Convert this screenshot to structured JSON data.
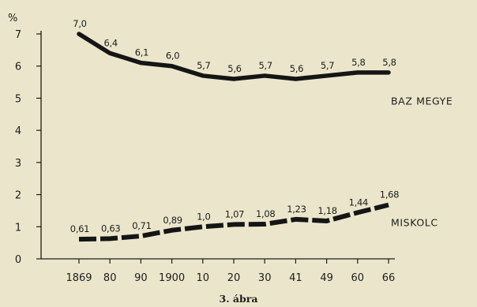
{
  "chart_data": {
    "type": "line",
    "unit_label": "%",
    "caption": "3. ábra",
    "x_tick_labels": [
      "1869",
      "80",
      "90",
      "1900",
      "10",
      "20",
      "30",
      "41",
      "49",
      "60",
      "66"
    ],
    "x_years": [
      1869,
      1880,
      1890,
      1900,
      1910,
      1920,
      1930,
      1941,
      1949,
      1960,
      1966
    ],
    "y_ticks": [
      0,
      1,
      2,
      3,
      4,
      5,
      6,
      7
    ],
    "y_tick_labels": [
      "0",
      "1",
      "2",
      "3",
      "4",
      "5",
      "6",
      "7"
    ],
    "ylim": [
      0,
      7
    ],
    "grid": false,
    "series": [
      {
        "name": "BAZ MEGYE",
        "style": "solid",
        "values": [
          7.0,
          6.4,
          6.1,
          6.0,
          5.7,
          5.6,
          5.7,
          5.6,
          5.7,
          5.8,
          5.8
        ],
        "value_labels": [
          "7,0",
          "6,4",
          "6,1",
          "6,0",
          "5,7",
          "5,6",
          "5,7",
          "5,6",
          "5,7",
          "5,8",
          "5,8"
        ]
      },
      {
        "name": "MISKOLC",
        "style": "dashed",
        "values": [
          0.61,
          0.63,
          0.71,
          0.89,
          1.0,
          1.07,
          1.08,
          1.23,
          1.18,
          1.44,
          1.68
        ],
        "value_labels": [
          "0,61",
          "0,63",
          "0,71",
          "0,89",
          "1,0",
          "1,07",
          "1,08",
          "1,23",
          "1,18",
          "1,44",
          "1,68"
        ]
      }
    ]
  }
}
